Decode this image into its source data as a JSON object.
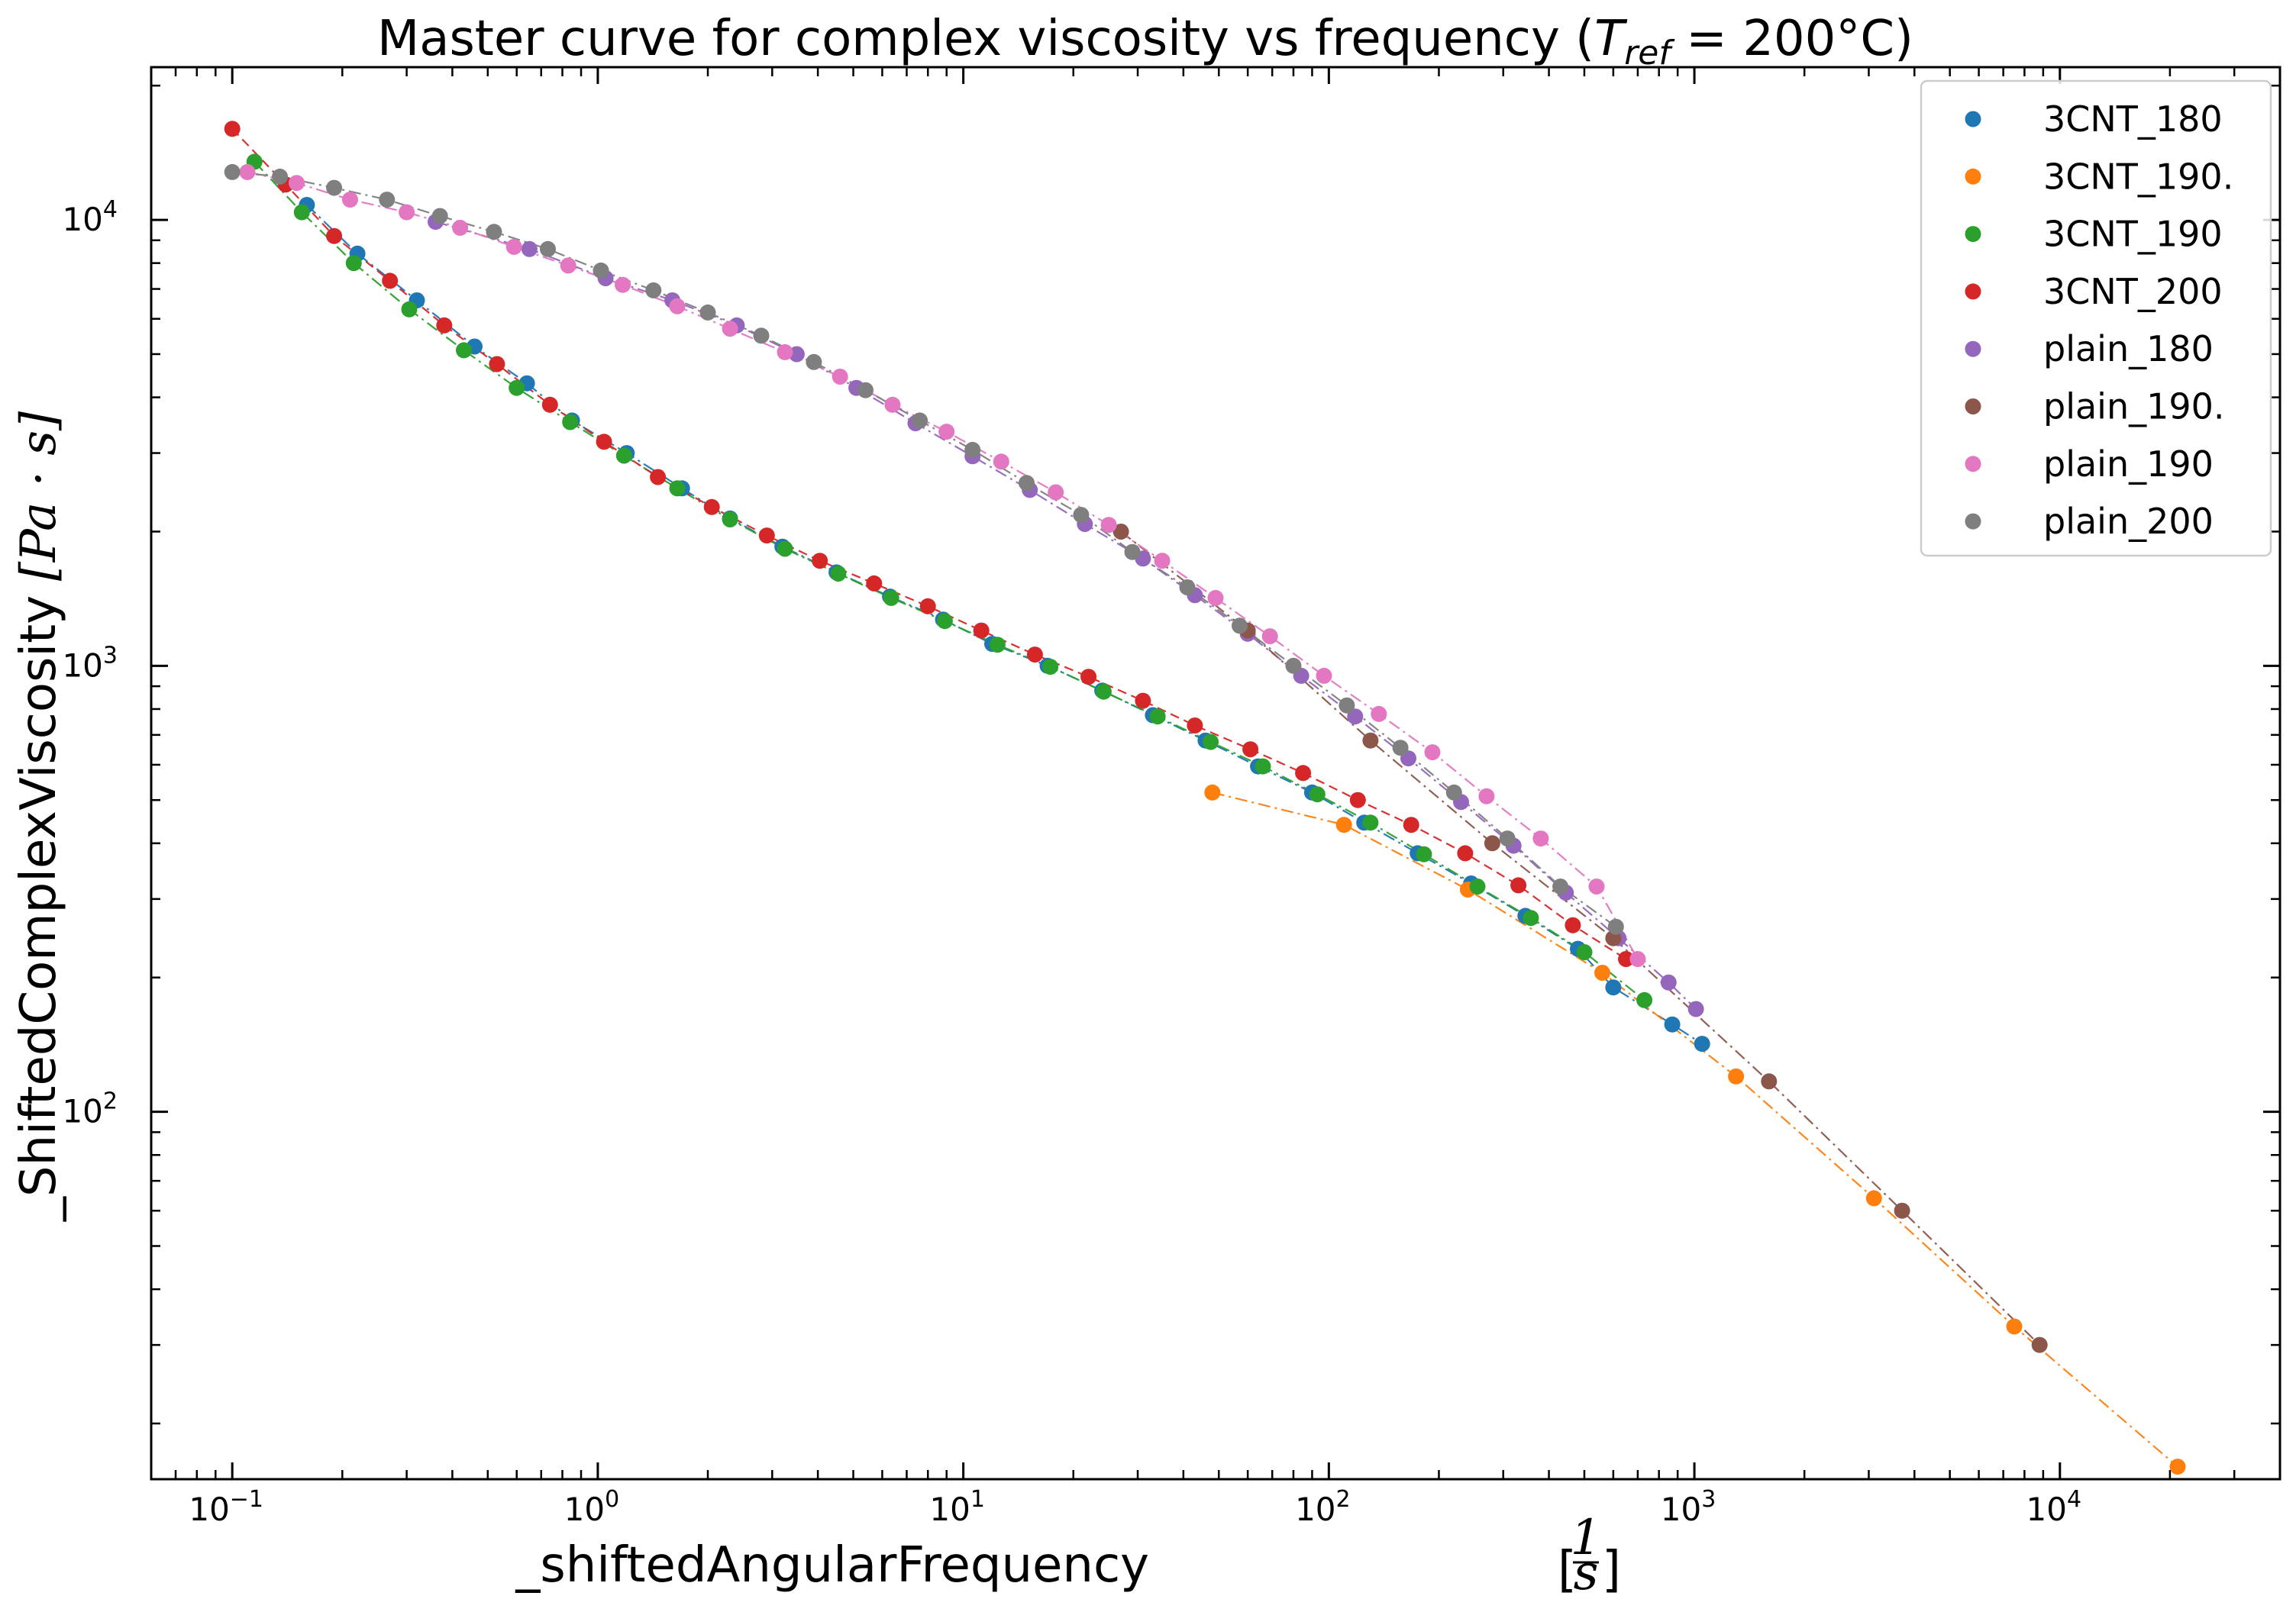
{
  "chart_data": {
    "type": "scatter",
    "title": "Master curve for complex viscosity vs frequency (",
    "title_math": {
      "var": "T",
      "sub": "ref",
      "rest": " = 200°C",
      "close": ")"
    },
    "xlabel": "_shiftedAngularFrequency",
    "xunit": {
      "num": "1",
      "den": "s"
    },
    "ylabel": "_ShiftedComplexViscosity",
    "yunit": "[Pa · s]",
    "xscale": "log",
    "yscale": "log",
    "xlim": [
      0.06,
      40000
    ],
    "ylim": [
      15,
      22000
    ],
    "xticks": [
      {
        "base": "10",
        "exp": "−1",
        "value": 0.1
      },
      {
        "base": "10",
        "exp": "0",
        "value": 1
      },
      {
        "base": "10",
        "exp": "1",
        "value": 10
      },
      {
        "base": "10",
        "exp": "2",
        "value": 100
      },
      {
        "base": "10",
        "exp": "3",
        "value": 1000
      },
      {
        "base": "10",
        "exp": "4",
        "value": 10000
      }
    ],
    "yticks": [
      {
        "base": "10",
        "exp": "2",
        "value": 100
      },
      {
        "base": "10",
        "exp": "3",
        "value": 1000
      },
      {
        "base": "10",
        "exp": "4",
        "value": 10000
      }
    ],
    "grid": false,
    "legend_position": "top-right",
    "series": [
      {
        "name": "3CNT_180",
        "color": "#1f77b4",
        "line": "dashdot",
        "x": [
          0.16,
          0.22,
          0.32,
          0.46,
          0.64,
          0.85,
          1.2,
          1.7,
          2.3,
          3.2,
          4.5,
          6.3,
          8.8,
          12,
          17,
          24,
          33,
          46,
          64,
          90,
          125,
          175,
          245,
          345,
          480,
          600,
          870,
          1050
        ],
        "y": [
          10800,
          8400,
          6600,
          5200,
          4300,
          3550,
          3000,
          2500,
          2140,
          1850,
          1620,
          1430,
          1270,
          1120,
          1000,
          880,
          775,
          680,
          595,
          520,
          445,
          380,
          325,
          275,
          232,
          190,
          157,
          142
        ]
      },
      {
        "name": "3CNT_190.",
        "color": "#ff7f0e",
        "line": "dashdot",
        "x": [
          48,
          110,
          240,
          560,
          1300,
          3100,
          7500,
          21000
        ],
        "y": [
          520,
          440,
          315,
          205,
          120,
          64,
          33,
          16
        ]
      },
      {
        "name": "3CNT_190",
        "color": "#2ca02c",
        "line": "dashdot",
        "x": [
          0.115,
          0.155,
          0.215,
          0.305,
          0.43,
          0.6,
          0.84,
          1.18,
          1.65,
          2.3,
          3.25,
          4.55,
          6.35,
          8.9,
          12.4,
          17.3,
          24.2,
          34,
          47.5,
          66,
          93,
          130,
          182,
          255,
          357,
          500,
          730
        ],
        "y": [
          13500,
          10400,
          8000,
          6300,
          5100,
          4200,
          3520,
          2960,
          2500,
          2130,
          1830,
          1610,
          1420,
          1260,
          1115,
          995,
          875,
          770,
          675,
          595,
          515,
          445,
          378,
          320,
          272,
          228,
          178
        ]
      },
      {
        "name": "3CNT_200",
        "color": "#d62728",
        "line": "dashed",
        "x": [
          0.1,
          0.14,
          0.19,
          0.27,
          0.38,
          0.53,
          0.74,
          1.04,
          1.46,
          2.05,
          2.9,
          4.05,
          5.7,
          8.0,
          11.2,
          15.7,
          22,
          31,
          43,
          61,
          85,
          120,
          168,
          236,
          330,
          465,
          650
        ],
        "y": [
          16000,
          12000,
          9200,
          7300,
          5800,
          4750,
          3850,
          3180,
          2650,
          2270,
          1960,
          1720,
          1530,
          1360,
          1200,
          1060,
          945,
          835,
          735,
          650,
          575,
          500,
          440,
          380,
          322,
          262,
          220
        ]
      },
      {
        "name": "plain_180",
        "color": "#9467bd",
        "line": "dashdot",
        "x": [
          0.36,
          0.65,
          1.05,
          1.6,
          2.4,
          3.5,
          5.1,
          7.4,
          10.6,
          15.2,
          21.5,
          31,
          43,
          60,
          84,
          118,
          165,
          230,
          320,
          445,
          620,
          850,
          1010
        ],
        "y": [
          9900,
          8600,
          7400,
          6600,
          5800,
          5000,
          4200,
          3500,
          2950,
          2480,
          2080,
          1740,
          1440,
          1180,
          950,
          770,
          620,
          495,
          395,
          310,
          245,
          195,
          170
        ]
      },
      {
        "name": "plain_190.",
        "color": "#8c564b",
        "line": "dashdot",
        "x": [
          27,
          60,
          130,
          280,
          600,
          1600,
          3700,
          8800
        ],
        "y": [
          2000,
          1200,
          680,
          400,
          245,
          117,
          60,
          30
        ]
      },
      {
        "name": "plain_190",
        "color": "#e377c2",
        "line": "dashdot",
        "x": [
          0.11,
          0.15,
          0.21,
          0.3,
          0.42,
          0.59,
          0.83,
          1.17,
          1.65,
          2.3,
          3.25,
          4.6,
          6.4,
          9.0,
          12.7,
          17.9,
          25,
          35,
          49,
          69,
          97,
          137,
          192,
          270,
          380,
          540,
          700
        ],
        "y": [
          12800,
          12100,
          11100,
          10400,
          9600,
          8700,
          7900,
          7150,
          6400,
          5700,
          5050,
          4450,
          3850,
          3350,
          2870,
          2450,
          2070,
          1720,
          1420,
          1165,
          950,
          780,
          640,
          510,
          410,
          320,
          220
        ]
      },
      {
        "name": "plain_200",
        "color": "#7f7f7f",
        "line": "dashdot",
        "x": [
          0.1,
          0.135,
          0.19,
          0.265,
          0.37,
          0.52,
          0.73,
          1.02,
          1.42,
          2.0,
          2.8,
          3.9,
          5.4,
          7.6,
          10.6,
          14.9,
          21,
          29,
          41,
          57,
          80,
          112,
          157,
          220,
          308,
          430,
          610
        ],
        "y": [
          12800,
          12500,
          11800,
          11100,
          10200,
          9400,
          8600,
          7700,
          6950,
          6200,
          5500,
          4800,
          4150,
          3550,
          3050,
          2570,
          2180,
          1800,
          1500,
          1230,
          1000,
          815,
          655,
          520,
          410,
          320,
          260
        ]
      }
    ]
  }
}
